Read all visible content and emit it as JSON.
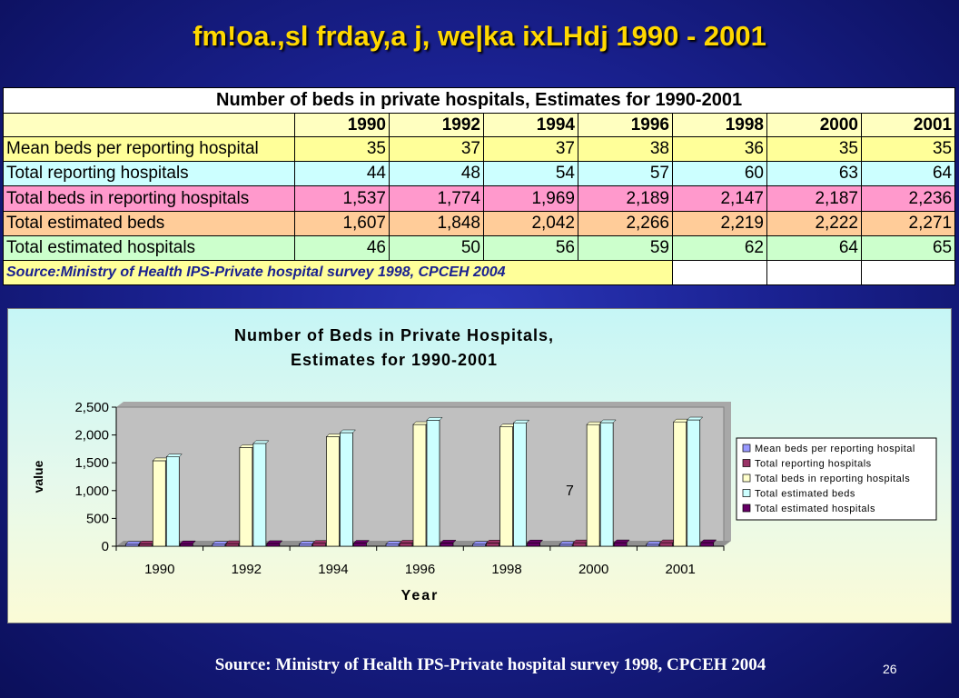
{
  "slide": {
    "title": "fm!oa.,sl frday,a j, we|ka ixLHdj 1990 - 2001",
    "footer_source": "Source: Ministry of Health IPS-Private hospital survey 1998, CPCEH 2004",
    "page_number": "26"
  },
  "table": {
    "title": "Number of beds in private hospitals, Estimates for 1990-2001",
    "years": [
      "1990",
      "1992",
      "1994",
      "1996",
      "1998",
      "2000",
      "2001"
    ],
    "rows": [
      {
        "label": "Mean beds per reporting hospital",
        "values": [
          "35",
          "37",
          "37",
          "38",
          "36",
          "35",
          "35"
        ]
      },
      {
        "label": "Total reporting hospitals",
        "values": [
          "44",
          "48",
          "54",
          "57",
          "60",
          "63",
          "64"
        ]
      },
      {
        "label": "Total beds in reporting hospitals",
        "values": [
          "1,537",
          "1,774",
          "1,969",
          "2,189",
          "2,147",
          "2,187",
          "2,236"
        ]
      },
      {
        "label": "Total estimated beds",
        "values": [
          "1,607",
          "1,848",
          "2,042",
          "2,266",
          "2,219",
          "2,222",
          "2,271"
        ]
      },
      {
        "label": "Total estimated hospitals",
        "values": [
          "46",
          "50",
          "56",
          "59",
          "62",
          "64",
          "65"
        ]
      }
    ],
    "source": "Source:Ministry of Health IPS-Private hospital survey 1998, CPCEH 2004",
    "row_colors": [
      "#ffff99",
      "#ccffff",
      "#ff99cc",
      "#ffcc99",
      "#ccffcc"
    ]
  },
  "chart_data": {
    "type": "bar",
    "title_line1": "Number of Beds in Private Hospitals,",
    "title_line2": "Estimates for 1990-2001",
    "xlabel": "Year",
    "ylabel": "value",
    "categories": [
      "1990",
      "1992",
      "1994",
      "1996",
      "1998",
      "2000",
      "2001"
    ],
    "ylim": [
      0,
      2500
    ],
    "yticks": [
      0,
      500,
      1000,
      1500,
      2000,
      2500
    ],
    "ytick_labels": [
      "0",
      "500",
      "1,000",
      "1,500",
      "2,000",
      "2,500"
    ],
    "grid": false,
    "legend_position": "right",
    "annotation": "7",
    "series": [
      {
        "name": "Mean beds per reporting hospital",
        "color": "#9999ff",
        "values": [
          35,
          37,
          37,
          38,
          36,
          35,
          35
        ]
      },
      {
        "name": "Total reporting hospitals",
        "color": "#993366",
        "values": [
          44,
          48,
          54,
          57,
          60,
          63,
          64
        ]
      },
      {
        "name": "Total beds in reporting hospitals",
        "color": "#ffffcc",
        "values": [
          1537,
          1774,
          1969,
          2189,
          2147,
          2187,
          2236
        ]
      },
      {
        "name": "Total estimated beds",
        "color": "#ccffff",
        "values": [
          1607,
          1848,
          2042,
          2266,
          2219,
          2222,
          2271
        ]
      },
      {
        "name": "Total estimated hospitals",
        "color": "#660066",
        "values": [
          46,
          50,
          56,
          59,
          62,
          64,
          65
        ]
      }
    ]
  }
}
